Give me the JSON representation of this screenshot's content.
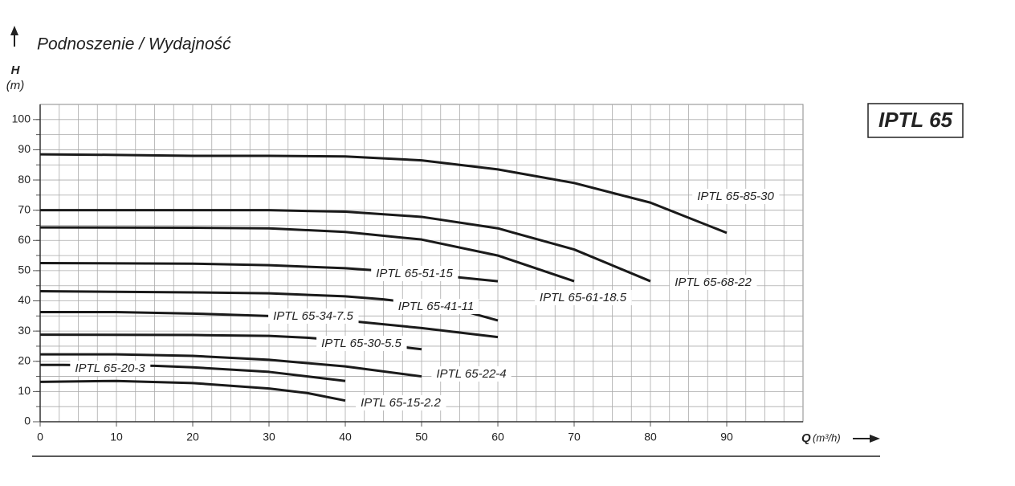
{
  "chart_data": {
    "type": "line",
    "title": "Podnoszenie / Wydajność",
    "y_label": "H",
    "y_unit": "(m)",
    "x_label": "Q",
    "x_unit": "(m³/h)",
    "badge": "IPTL 65",
    "xlim": [
      0,
      100
    ],
    "ylim": [
      0,
      105
    ],
    "xticks": [
      0,
      10,
      20,
      30,
      40,
      50,
      60,
      70,
      80,
      90
    ],
    "yticks": [
      0,
      10,
      20,
      30,
      40,
      50,
      60,
      70,
      80,
      90,
      100
    ],
    "grid": true,
    "grid_step": [
      2.5,
      5
    ],
    "series": [
      {
        "name": "IPTL 65-85-30",
        "color": "#1a1a1a",
        "x": [
          0,
          10,
          20,
          30,
          40,
          50,
          60,
          70,
          80,
          90
        ],
        "values": [
          88.5,
          88.3,
          88,
          88,
          87.8,
          86.5,
          83.5,
          79,
          72.5,
          62.5
        ]
      },
      {
        "name": "IPTL 65-68-22",
        "color": "#1a1a1a",
        "x": [
          0,
          20,
          30,
          40,
          50,
          60,
          70,
          80
        ],
        "values": [
          70,
          70,
          70,
          69.5,
          67.8,
          64,
          57,
          46.5
        ]
      },
      {
        "name": "IPTL 65-61-18.5",
        "color": "#1a1a1a",
        "x": [
          0,
          20,
          30,
          40,
          50,
          60,
          70
        ],
        "values": [
          64.3,
          64.2,
          64,
          62.8,
          60.3,
          55,
          46.5
        ]
      },
      {
        "name": "IPTL 65-51-15",
        "color": "#1a1a1a",
        "x": [
          0,
          20,
          30,
          40,
          50,
          60
        ],
        "values": [
          52.5,
          52.3,
          51.8,
          50.8,
          49,
          46.5
        ]
      },
      {
        "name": "IPTL 65-41-11",
        "color": "#1a1a1a",
        "x": [
          0,
          20,
          30,
          40,
          45,
          50,
          55,
          60
        ],
        "values": [
          43.2,
          42.8,
          42.5,
          41.5,
          40.5,
          39,
          37,
          33.5
        ]
      },
      {
        "name": "IPTL 65-34-7.5",
        "color": "#1a1a1a",
        "x": [
          0,
          10,
          20,
          30,
          40,
          50,
          60
        ],
        "values": [
          36.3,
          36.3,
          35.8,
          35,
          33.5,
          31,
          28
        ]
      },
      {
        "name": "IPTL 65-30-5.5",
        "color": "#1a1a1a",
        "x": [
          0,
          20,
          30,
          35,
          40,
          50
        ],
        "values": [
          28.8,
          28.7,
          28.4,
          27.8,
          26.8,
          24
        ]
      },
      {
        "name": "IPTL 65-22-4",
        "color": "#1a1a1a",
        "x": [
          0,
          10,
          20,
          30,
          40,
          50
        ],
        "values": [
          22.3,
          22.3,
          21.8,
          20.5,
          18.3,
          15
        ]
      },
      {
        "name": "IPTL 65-20-3",
        "color": "#1a1a1a",
        "x": [
          0,
          3,
          15,
          20,
          30,
          40
        ],
        "values": [
          18.8,
          18.8,
          18.5,
          18,
          16.5,
          13.5
        ]
      },
      {
        "name": "IPTL 65-15-2.2",
        "color": "#1a1a1a",
        "x": [
          0,
          10,
          20,
          30,
          35,
          40
        ],
        "values": [
          13.2,
          13.5,
          12.8,
          11,
          9.5,
          7
        ]
      }
    ]
  }
}
